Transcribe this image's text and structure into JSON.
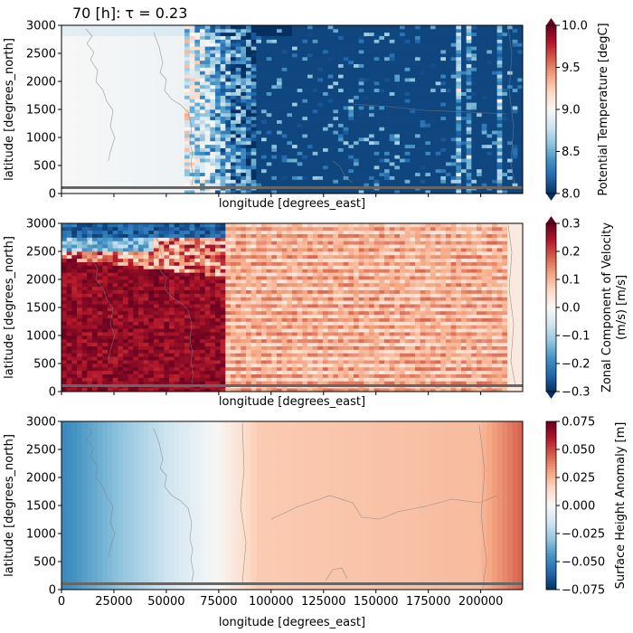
{
  "title": "70 [h]: τ = 0.23",
  "colormap": {
    "name": "RdBu_r",
    "stops": [
      "#053061",
      "#2166ac",
      "#4393c3",
      "#92c5de",
      "#d1e5f0",
      "#f7f7f7",
      "#fddbc7",
      "#f4a582",
      "#d6604d",
      "#b2182b",
      "#67001f"
    ]
  },
  "coastline_color": "#808080",
  "boundary_color": "#666666",
  "chart_data": [
    {
      "type": "heatmap",
      "panel": "top",
      "xlabel": "longitude [degrees_east]",
      "ylabel": "latitude [degrees_north]",
      "xlim": [
        0,
        220000
      ],
      "ylim": [
        0,
        3000
      ],
      "yticks": [
        "0",
        "500",
        "1000",
        "1500",
        "2000",
        "2500",
        "3000"
      ],
      "xticks": [],
      "colorbar": {
        "label": "Potential Temperature [degC]",
        "vmin": 8.0,
        "vmax": 10.0,
        "ticks": [
          "8.0",
          "8.5",
          "9.0",
          "9.5",
          "10.0"
        ],
        "extend": "both"
      },
      "grid": false,
      "field_summary": "warm near-uniform ~9.0 west of 50000 m, sharp cooling with column streaks toward 8.0 east of 90000 m"
    },
    {
      "type": "heatmap",
      "panel": "middle",
      "xlabel": "longitude [degrees_east]",
      "ylabel": "latitude [degrees_north]",
      "xlim": [
        0,
        220000
      ],
      "ylim": [
        0,
        3000
      ],
      "yticks": [
        "0",
        "500",
        "1000",
        "1500",
        "2000",
        "2500",
        "3000"
      ],
      "xticks": [],
      "colorbar": {
        "label": "Zonal Component of Velocity (m/s) [m/s]",
        "label_lines": [
          "Zonal Component of Velocity",
          "(m/s) [m/s]"
        ],
        "vmin": -0.3,
        "vmax": 0.3,
        "ticks": [
          "−0.3",
          "−0.2",
          "−0.1",
          "0.0",
          "0.1",
          "0.2",
          "0.3"
        ],
        "extend": "both"
      },
      "grid": false,
      "field_summary": "strong eastward flow ~0.3 in west below 2200, westward ~-0.3 near top-left, moderate ~0.1 with horizontal banding to the east"
    },
    {
      "type": "heatmap",
      "panel": "bottom",
      "xlabel": "longitude [degrees_east]",
      "ylabel": "latitude [degrees_north]",
      "xlim": [
        0,
        220000
      ],
      "ylim": [
        0,
        3000
      ],
      "yticks": [
        "0",
        "500",
        "1000",
        "1500",
        "2000",
        "2500",
        "3000"
      ],
      "xticks": [
        "0",
        "25000",
        "50000",
        "75000",
        "100000",
        "125000",
        "150000",
        "175000",
        "200000"
      ],
      "colorbar": {
        "label": "Surface Height Anomaly [m]",
        "vmin": -0.075,
        "vmax": 0.075,
        "ticks": [
          "0.075",
          "0.050",
          "0.025",
          "0.000",
          "−0.025",
          "−0.050",
          "−0.075"
        ],
        "extend": "neither"
      },
      "grid": false,
      "field_summary": "about -0.05 at west edge rising to ~0.0 near 70000 m, ~+0.02 across the middle, ~+0.05 at east edge"
    }
  ]
}
